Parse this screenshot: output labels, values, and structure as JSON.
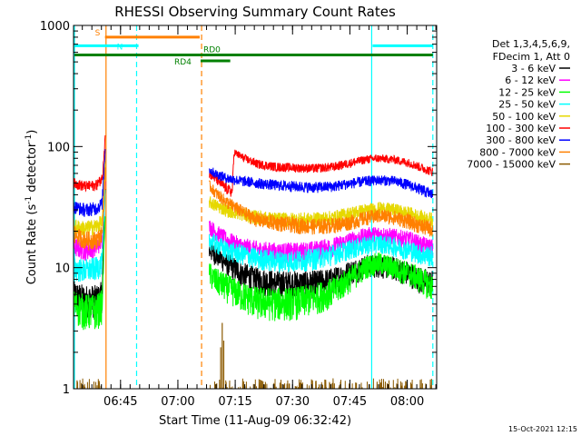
{
  "chart_data": {
    "type": "line",
    "title": "RHESSI Observing Summary Count Rates",
    "xlabel": "Start Time (11-Aug-09 06:32:42)",
    "ylabel_main": "Count Rate (s",
    "ylabel_sup1": "-1",
    "ylabel_mid": " detector",
    "ylabel_sup2": "-1",
    "ylabel_end": ")",
    "yscale": "log",
    "ylim": [
      1,
      1000
    ],
    "y_ticks": [
      {
        "value": 1,
        "label": "1"
      },
      {
        "value": 10,
        "label": "10"
      },
      {
        "value": 100,
        "label": "100"
      },
      {
        "value": 1000,
        "label": "1000"
      }
    ],
    "x_unit": "minutes after 06:32:42",
    "xlim": [
      0,
      95
    ],
    "x_ticks": [
      {
        "label": "06:45",
        "value": 12.3
      },
      {
        "label": "07:00",
        "value": 27.3
      },
      {
        "label": "07:15",
        "value": 42.3
      },
      {
        "label": "07:30",
        "value": 57.3
      },
      {
        "label": "07:45",
        "value": 72.3
      },
      {
        "label": "08:00",
        "value": 87.3
      }
    ],
    "legend": {
      "position": "top-right",
      "header": [
        "Det 1,3,4,5,6,9,",
        "FDecim 1, Att 0"
      ],
      "entries": [
        {
          "label": "3 - 6 keV",
          "color": "#000000"
        },
        {
          "label": "6 - 12 keV",
          "color": "#ff00ff"
        },
        {
          "label": "12 - 25 keV",
          "color": "#00ff00"
        },
        {
          "label": "25 - 50 keV",
          "color": "#00ffff"
        },
        {
          "label": "50 - 100 keV",
          "color": "#e6d800"
        },
        {
          "label": "100 - 300 keV",
          "color": "#ff0000"
        },
        {
          "label": "300 - 800 keV",
          "color": "#0000ff"
        },
        {
          "label": "800 - 7000 keV",
          "color": "#ff8000"
        },
        {
          "label": "7000 - 15000 keV",
          "color": "#8b5a00"
        }
      ]
    },
    "flags": [
      {
        "label": "S",
        "color": "#ff8000",
        "y": 800,
        "x_start": 8,
        "x_end": 33
      },
      {
        "label": "N",
        "color": "#00ffff",
        "y": 680,
        "x_start": 0,
        "x_end": 17
      },
      {
        "label": "",
        "color": "#00ffff",
        "y": 680,
        "x_start": 78,
        "x_end": 94
      },
      {
        "label": "RD0",
        "color": "#008000",
        "y": 570,
        "x_start": 0,
        "x_end": 94
      },
      {
        "label": "RD4",
        "color": "#008000",
        "y": 510,
        "x_start": 33,
        "x_end": 41
      }
    ],
    "vertical_markers": [
      {
        "x": 0,
        "color": "#00ffff",
        "style": "solid"
      },
      {
        "x": 8.5,
        "color": "#ff8000",
        "style": "solid"
      },
      {
        "x": 16.5,
        "color": "#00ffff",
        "style": "dashed"
      },
      {
        "x": 33.5,
        "color": "#ff8000",
        "style": "dashed"
      },
      {
        "x": 78,
        "color": "#00ffff",
        "style": "solid"
      },
      {
        "x": 94,
        "color": "#00ffff",
        "style": "dashed"
      }
    ],
    "segments": [
      {
        "x_start": 0,
        "x_end": 7.5,
        "spike_end": 8.3
      },
      {
        "x_start": 35.5,
        "x_end": 94
      }
    ],
    "series": [
      {
        "name": "3 - 6 keV",
        "color": "#000000",
        "seg1": {
          "points": [
            [
              0,
              6
            ],
            [
              3,
              5.5
            ],
            [
              6,
              5.5
            ],
            [
              7.5,
              6
            ]
          ],
          "spike": 50
        },
        "seg2": {
          "points": [
            [
              35.5,
              14
            ],
            [
              37,
              13
            ],
            [
              40,
              11
            ],
            [
              44,
              9
            ],
            [
              48,
              8
            ],
            [
              53,
              7.5
            ],
            [
              58,
              7.5
            ],
            [
              63,
              7.5
            ],
            [
              68,
              8
            ],
            [
              73,
              9.5
            ],
            [
              77,
              10.5
            ],
            [
              80,
              10.5
            ],
            [
              84,
              10
            ],
            [
              88,
              9
            ],
            [
              91,
              8
            ],
            [
              94,
              7.5
            ]
          ]
        }
      },
      {
        "name": "6 - 12 keV",
        "color": "#ff00ff",
        "seg1": {
          "points": [
            [
              0,
              15
            ],
            [
              3,
              14
            ],
            [
              6,
              15
            ],
            [
              7.5,
              17
            ]
          ],
          "spike": 60
        },
        "seg2": {
          "points": [
            [
              35.5,
              22
            ],
            [
              37,
              20
            ],
            [
              40,
              17
            ],
            [
              44,
              15
            ],
            [
              48,
              14
            ],
            [
              53,
              13.5
            ],
            [
              58,
              13.5
            ],
            [
              63,
              14
            ],
            [
              68,
              15
            ],
            [
              73,
              17
            ],
            [
              77,
              18.5
            ],
            [
              80,
              19
            ],
            [
              84,
              18
            ],
            [
              88,
              17
            ],
            [
              91,
              15.5
            ],
            [
              94,
              14.5
            ]
          ]
        }
      },
      {
        "name": "12 - 25 keV",
        "color": "#00ff00",
        "seg1": {
          "points": [
            [
              0,
              5
            ],
            [
              3,
              4.5
            ],
            [
              6,
              4.5
            ],
            [
              7.5,
              5
            ]
          ],
          "spike": 30
        },
        "seg2": {
          "points": [
            [
              35.5,
              9
            ],
            [
              37,
              8
            ],
            [
              40,
              7
            ],
            [
              44,
              6
            ],
            [
              48,
              5.3
            ],
            [
              53,
              5.2
            ],
            [
              58,
              5.3
            ],
            [
              63,
              5.7
            ],
            [
              68,
              6.5
            ],
            [
              73,
              8.5
            ],
            [
              77,
              10.5
            ],
            [
              80,
              11
            ],
            [
              84,
              10
            ],
            [
              88,
              9
            ],
            [
              91,
              8
            ],
            [
              94,
              7
            ]
          ]
        }
      },
      {
        "name": "25 - 50 keV",
        "color": "#00ffff",
        "seg1": {
          "points": [
            [
              0,
              10
            ],
            [
              3,
              9.5
            ],
            [
              6,
              10
            ],
            [
              7.5,
              11
            ]
          ],
          "spike": 40
        },
        "seg2": {
          "points": [
            [
              35.5,
              17
            ],
            [
              37,
              16
            ],
            [
              40,
              14
            ],
            [
              44,
              13
            ],
            [
              48,
              12
            ],
            [
              53,
              11.5
            ],
            [
              58,
              11.5
            ],
            [
              63,
              12
            ],
            [
              68,
              13
            ],
            [
              73,
              14.5
            ],
            [
              77,
              15.5
            ],
            [
              80,
              16
            ],
            [
              84,
              15
            ],
            [
              88,
              14
            ],
            [
              91,
              13
            ],
            [
              94,
              12.5
            ]
          ]
        }
      },
      {
        "name": "50 - 100 keV",
        "color": "#e6d800",
        "seg1": {
          "points": [
            [
              0,
              22
            ],
            [
              3,
              21
            ],
            [
              6,
              22
            ],
            [
              7.5,
              24
            ]
          ],
          "spike": 70
        },
        "seg2": {
          "points": [
            [
              35.5,
              35
            ],
            [
              37,
              33
            ],
            [
              40,
              30
            ],
            [
              44,
              28
            ],
            [
              48,
              26
            ],
            [
              53,
              25
            ],
            [
              58,
              25
            ],
            [
              63,
              25
            ],
            [
              68,
              26
            ],
            [
              73,
              28.5
            ],
            [
              77,
              30
            ],
            [
              80,
              31
            ],
            [
              84,
              30
            ],
            [
              88,
              28
            ],
            [
              91,
              26
            ],
            [
              94,
              25
            ]
          ]
        }
      },
      {
        "name": "100 - 300 keV",
        "color": "#ff0000",
        "seg1": {
          "points": [
            [
              0,
              50
            ],
            [
              3,
              47
            ],
            [
              6,
              48
            ],
            [
              7.5,
              55
            ]
          ],
          "spike": 130
        },
        "seg2": {
          "points": [
            [
              35.5,
              60
            ],
            [
              37,
              55
            ],
            [
              40,
              45
            ],
            [
              41.5,
              42
            ],
            [
              42,
              90
            ],
            [
              44,
              82
            ],
            [
              48,
              72
            ],
            [
              53,
              68
            ],
            [
              58,
              67
            ],
            [
              63,
              66
            ],
            [
              68,
              68
            ],
            [
              73,
              74
            ],
            [
              77,
              79
            ],
            [
              80,
              80
            ],
            [
              84,
              78
            ],
            [
              88,
              73
            ],
            [
              91,
              67
            ],
            [
              94,
              62
            ]
          ]
        }
      },
      {
        "name": "300 - 800 keV",
        "color": "#0000ff",
        "seg1": {
          "points": [
            [
              0,
              32
            ],
            [
              3,
              30
            ],
            [
              6,
              31
            ],
            [
              7.5,
              34
            ]
          ],
          "spike": 100
        },
        "seg2": {
          "points": [
            [
              35.5,
              65
            ],
            [
              37,
              60
            ],
            [
              40,
              55
            ],
            [
              44,
              52
            ],
            [
              48,
              50
            ],
            [
              53,
              48
            ],
            [
              58,
              47
            ],
            [
              63,
              46
            ],
            [
              68,
              47
            ],
            [
              73,
              50
            ],
            [
              77,
              52
            ],
            [
              80,
              53
            ],
            [
              84,
              52
            ],
            [
              88,
              48
            ],
            [
              91,
              44
            ],
            [
              94,
              40
            ]
          ]
        }
      },
      {
        "name": "800 - 7000 keV",
        "color": "#ff8000",
        "seg1": {
          "points": [
            [
              0,
              19
            ],
            [
              3,
              17
            ],
            [
              6,
              17
            ],
            [
              7.5,
              19
            ]
          ],
          "spike": 60
        },
        "seg2": {
          "points": [
            [
              35.5,
              48
            ],
            [
              37,
              42
            ],
            [
              40,
              35
            ],
            [
              42,
              32
            ],
            [
              44,
              29
            ],
            [
              48,
              25
            ],
            [
              53,
              23.5
            ],
            [
              58,
              22.5
            ],
            [
              63,
              22
            ],
            [
              68,
              22.5
            ],
            [
              73,
              24
            ],
            [
              77,
              26
            ],
            [
              80,
              27
            ],
            [
              84,
              26
            ],
            [
              88,
              24
            ],
            [
              91,
              22
            ],
            [
              94,
              21
            ]
          ]
        }
      },
      {
        "name": "7000 - 15000 keV",
        "color": "#8b5a00",
        "seg1": {
          "points": [
            [
              0,
              0.5
            ]
          ],
          "spike": 0.5
        },
        "seg2": {
          "points": [
            [
              35.5,
              0.5
            ]
          ]
        },
        "spikes": [
          [
            38.5,
            2.2
          ],
          [
            38.9,
            3.5
          ],
          [
            39.3,
            2.5
          ]
        ]
      }
    ],
    "timestamp": "15-Oct-2021 12:15"
  }
}
